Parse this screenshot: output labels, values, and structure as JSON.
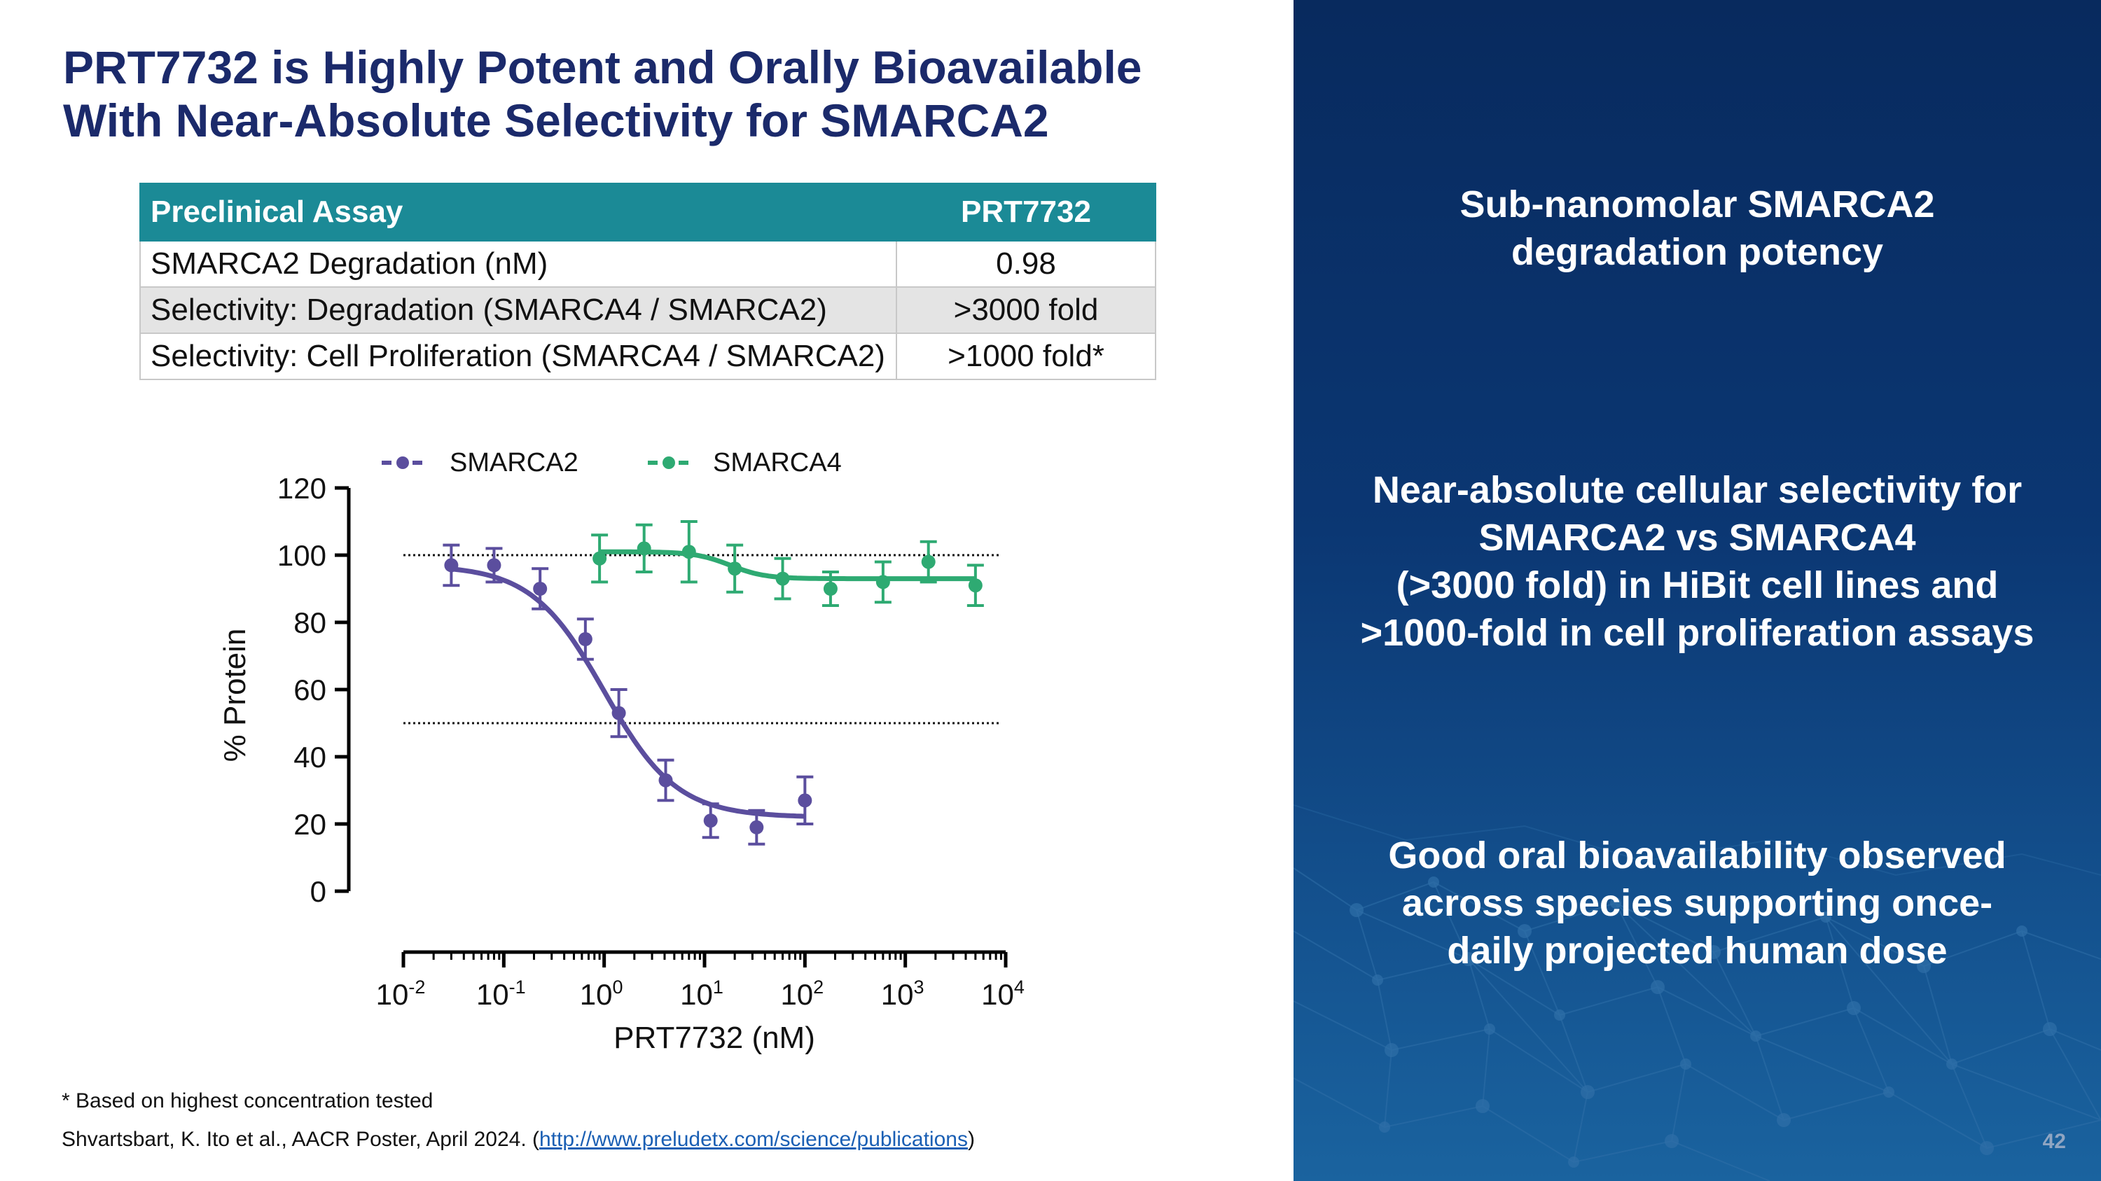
{
  "title": {
    "line1": "PRT7732 is Highly Potent and Orally Bioavailable",
    "line2": "With Near-Absolute Selectivity for SMARCA2"
  },
  "table": {
    "headers": [
      "Preclinical Assay",
      "PRT7732"
    ],
    "rows": [
      [
        "SMARCA2 Degradation (nM)",
        "0.98"
      ],
      [
        "Selectivity: Degradation (SMARCA4 / SMARCA2)",
        ">3000 fold"
      ],
      [
        "Selectivity: Cell Proliferation (SMARCA4 / SMARCA2)",
        ">1000 fold*"
      ]
    ]
  },
  "chart_data": {
    "type": "scatter",
    "title": "",
    "xlabel": "PRT7732 (nM)",
    "ylabel": "% Protein",
    "xscale": "log",
    "xlim": [
      0.01,
      10000
    ],
    "ylim": [
      0,
      120
    ],
    "yticks": [
      0,
      20,
      40,
      60,
      80,
      100,
      120
    ],
    "xtick_bases": [
      "10",
      "10",
      "10",
      "10",
      "10",
      "10",
      "10"
    ],
    "xtick_exponents": [
      "-2",
      "-1",
      "0",
      "1",
      "2",
      "3",
      "4"
    ],
    "xtick_values": [
      0.01,
      0.1,
      1,
      10,
      100,
      1000,
      10000
    ],
    "reference_lines": [
      100,
      50
    ],
    "legend_position": "top",
    "series": [
      {
        "name": "SMARCA2",
        "color": "#5b4e9e",
        "x": [
          0.03,
          0.08,
          0.23,
          0.65,
          1.4,
          4.1,
          11.5,
          33,
          100
        ],
        "y": [
          97,
          97,
          90,
          75,
          53,
          33,
          21,
          19,
          27
        ],
        "err": [
          6,
          5,
          6,
          6,
          7,
          6,
          5,
          5,
          7
        ],
        "fit": {
          "top": 97,
          "bottom": 22,
          "ec50": 1.0,
          "hill": 1.2,
          "x_range": [
            0.03,
            100
          ]
        }
      },
      {
        "name": "SMARCA4",
        "color": "#2eaa72",
        "x": [
          0.9,
          2.5,
          7.0,
          20,
          60,
          180,
          600,
          1700,
          5000
        ],
        "y": [
          99,
          102,
          101,
          96,
          93,
          90,
          92,
          98,
          91
        ],
        "err": [
          7,
          7,
          9,
          7,
          6,
          5,
          6,
          6,
          6
        ],
        "fit": {
          "top": 101,
          "bottom": 93,
          "ec50": 18,
          "hill": 2.5,
          "x_range": [
            0.9,
            5000
          ]
        }
      }
    ]
  },
  "footnotes": {
    "note": "* Based on highest concentration tested",
    "citation": "Shvartsbart, K. Ito et al., AACR Poster, April 2024. (",
    "link": "http://www.preludetx.com/science/publications",
    "close": ")"
  },
  "panel": {
    "bullet1": [
      "Sub-nanomolar SMARCA2",
      "degradation potency"
    ],
    "bullet2": [
      "Near-absolute cellular selectivity for",
      "SMARCA2 vs SMARCA4",
      "(>3000 fold) in HiBit cell lines and",
      ">1000-fold in cell proliferation assays"
    ],
    "bullet3": [
      "Good oral bioavailability observed",
      "across species supporting once-",
      "daily projected human dose"
    ],
    "page_number": "42"
  }
}
